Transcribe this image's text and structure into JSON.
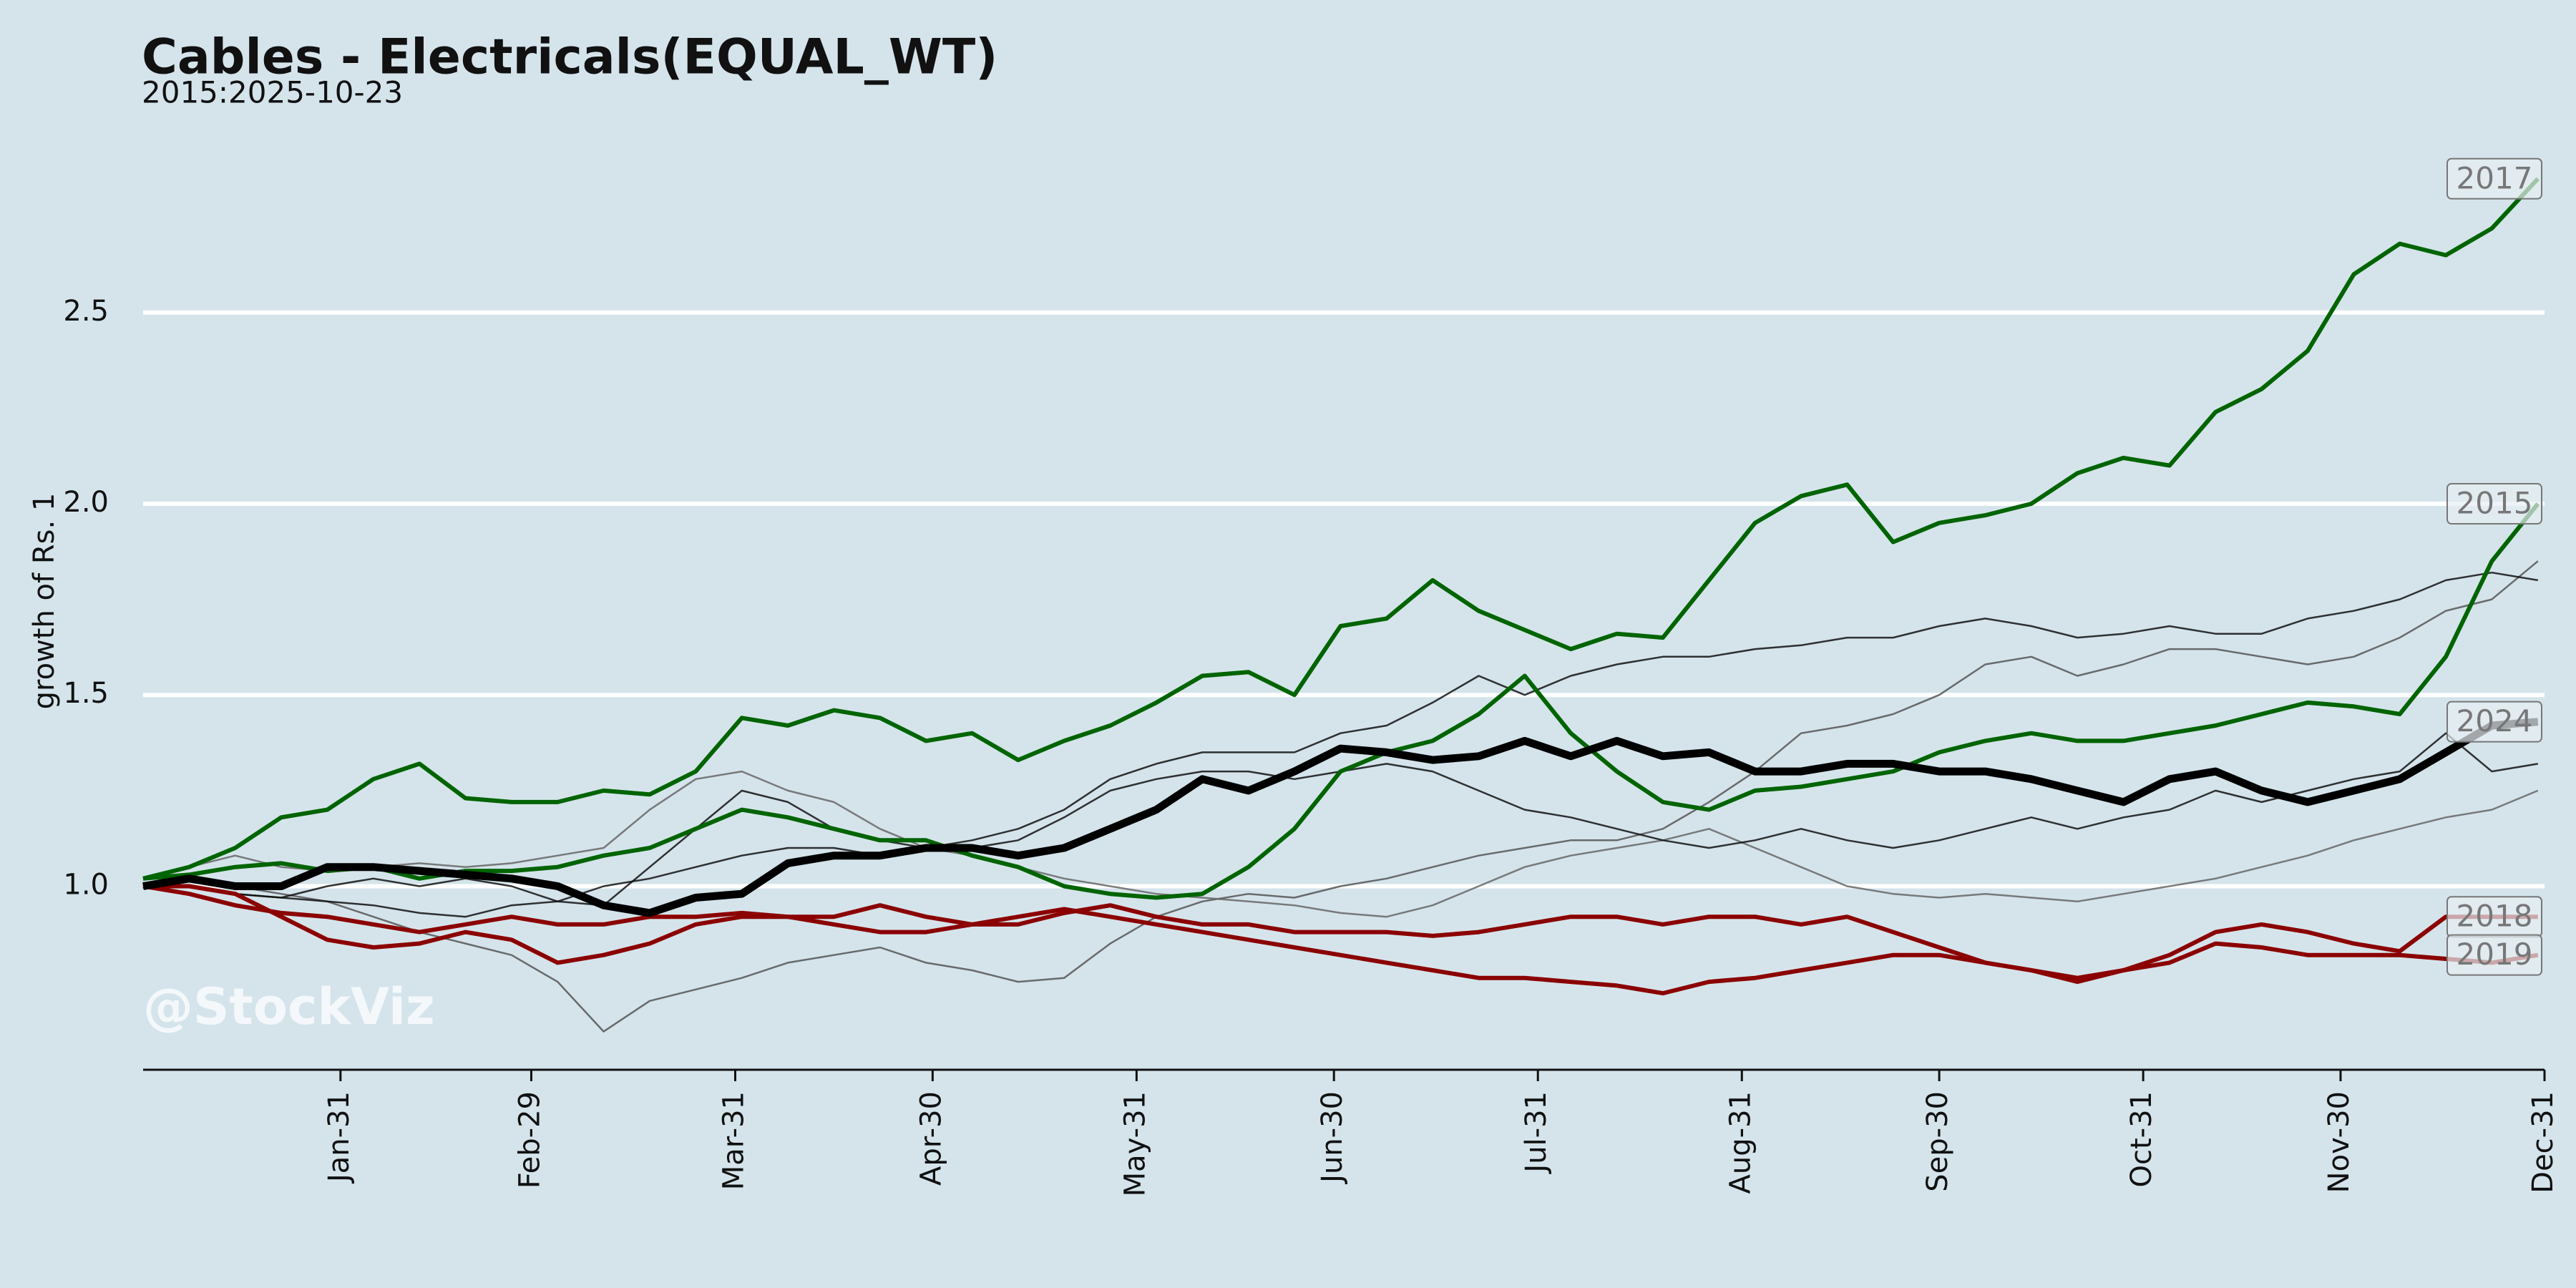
{
  "chart_data": {
    "type": "line",
    "title": "Cables - Electricals(EQUAL_WT)",
    "subtitle": "2015:2025-10-23",
    "y_label": "growth of Rs. 1",
    "watermark": "@StockViz",
    "grid": true,
    "xlim": [
      1,
      366
    ],
    "ylim": [
      0.52,
      2.93
    ],
    "yticks": [
      {
        "value": 1,
        "label": "1.0"
      },
      1.5,
      {
        "value": 2,
        "label": "2.0"
      },
      2.5
    ],
    "xticks": [
      {
        "value": 31,
        "label": "Jan-31"
      },
      {
        "value": 60,
        "label": "Feb-29"
      },
      {
        "value": 91,
        "label": "Mar-31"
      },
      {
        "value": 121,
        "label": "Apr-30"
      },
      {
        "value": 152,
        "label": "May-31"
      },
      {
        "value": 182,
        "label": "Jun-30"
      },
      {
        "value": 213,
        "label": "Jul-31"
      },
      {
        "value": 244,
        "label": "Aug-31"
      },
      {
        "value": 274,
        "label": "Sep-30"
      },
      {
        "value": 305,
        "label": "Oct-31"
      },
      {
        "value": 335,
        "label": "Nov-30"
      },
      {
        "value": 366,
        "label": "Dec-31"
      }
    ],
    "x": [
      1,
      8,
      15,
      22,
      29,
      36,
      43,
      50,
      57,
      64,
      71,
      78,
      85,
      92,
      99,
      106,
      113,
      120,
      127,
      134,
      141,
      148,
      155,
      162,
      169,
      176,
      183,
      190,
      197,
      204,
      211,
      218,
      225,
      232,
      239,
      246,
      253,
      260,
      267,
      274,
      281,
      288,
      295,
      302,
      309,
      316,
      323,
      330,
      337,
      344,
      351,
      358,
      365
    ],
    "series": [
      {
        "color": "#555555",
        "values": [
          1.0,
          1.02,
          1.0,
          0.98,
          0.96,
          0.92,
          0.88,
          0.85,
          0.82,
          0.75,
          0.62,
          0.7,
          0.73,
          0.76,
          0.8,
          0.82,
          0.84,
          0.8,
          0.78,
          0.75,
          0.76,
          0.85,
          0.92,
          0.96,
          0.98,
          0.97,
          1.0,
          1.02,
          1.05,
          1.08,
          1.1,
          1.12,
          1.12,
          1.15,
          1.22,
          1.3,
          1.4,
          1.42,
          1.45,
          1.5,
          1.58,
          1.6,
          1.55,
          1.58,
          1.62,
          1.62,
          1.6,
          1.58,
          1.6,
          1.65,
          1.72,
          1.75,
          1.85
        ]
      },
      {
        "color": "#666666",
        "values": [
          1.02,
          1.05,
          1.08,
          1.05,
          1.04,
          1.05,
          1.06,
          1.05,
          1.06,
          1.08,
          1.1,
          1.2,
          1.28,
          1.3,
          1.25,
          1.22,
          1.15,
          1.1,
          1.08,
          1.05,
          1.02,
          1.0,
          0.98,
          0.97,
          0.96,
          0.95,
          0.93,
          0.92,
          0.95,
          1.0,
          1.05,
          1.08,
          1.1,
          1.12,
          1.15,
          1.1,
          1.05,
          1.0,
          0.98,
          0.97,
          0.98,
          0.97,
          0.96,
          0.98,
          1.0,
          1.02,
          1.05,
          1.08,
          1.12,
          1.15,
          1.18,
          1.2,
          1.25
        ]
      },
      {
        "color": "#111111",
        "values": [
          1.0,
          1.0,
          0.98,
          0.97,
          0.96,
          0.95,
          0.93,
          0.92,
          0.95,
          0.96,
          1.0,
          1.02,
          1.05,
          1.08,
          1.1,
          1.1,
          1.08,
          1.1,
          1.12,
          1.15,
          1.2,
          1.28,
          1.32,
          1.35,
          1.35,
          1.35,
          1.4,
          1.42,
          1.48,
          1.55,
          1.5,
          1.55,
          1.58,
          1.6,
          1.6,
          1.62,
          1.63,
          1.65,
          1.65,
          1.68,
          1.7,
          1.68,
          1.65,
          1.66,
          1.68,
          1.66,
          1.66,
          1.7,
          1.72,
          1.75,
          1.8,
          1.82,
          1.8
        ]
      },
      {
        "color": "#111111",
        "values": [
          1.0,
          1.0,
          0.98,
          0.97,
          1.0,
          1.02,
          1.0,
          1.02,
          1.0,
          0.96,
          0.95,
          1.05,
          1.15,
          1.25,
          1.22,
          1.15,
          1.12,
          1.1,
          1.1,
          1.12,
          1.18,
          1.25,
          1.28,
          1.3,
          1.3,
          1.28,
          1.3,
          1.32,
          1.3,
          1.25,
          1.2,
          1.18,
          1.15,
          1.12,
          1.1,
          1.12,
          1.15,
          1.12,
          1.1,
          1.12,
          1.15,
          1.18,
          1.15,
          1.18,
          1.2,
          1.25,
          1.22,
          1.25,
          1.28,
          1.3,
          1.4,
          1.3,
          1.32
        ]
      },
      {
        "name": "2018",
        "color": "#8b0000",
        "values": [
          1.0,
          0.98,
          0.95,
          0.93,
          0.92,
          0.9,
          0.88,
          0.9,
          0.92,
          0.9,
          0.9,
          0.92,
          0.92,
          0.93,
          0.92,
          0.92,
          0.95,
          0.92,
          0.9,
          0.9,
          0.93,
          0.95,
          0.92,
          0.9,
          0.9,
          0.88,
          0.88,
          0.88,
          0.87,
          0.88,
          0.9,
          0.92,
          0.92,
          0.9,
          0.92,
          0.92,
          0.9,
          0.92,
          0.88,
          0.84,
          0.8,
          0.78,
          0.75,
          0.78,
          0.82,
          0.88,
          0.9,
          0.88,
          0.85,
          0.83,
          0.92,
          0.92,
          0.92
        ]
      },
      {
        "name": "2019",
        "color": "#8b0000",
        "values": [
          1.0,
          1.0,
          0.98,
          0.92,
          0.86,
          0.84,
          0.85,
          0.88,
          0.86,
          0.8,
          0.82,
          0.85,
          0.9,
          0.92,
          0.92,
          0.9,
          0.88,
          0.88,
          0.9,
          0.92,
          0.94,
          0.92,
          0.9,
          0.88,
          0.86,
          0.84,
          0.82,
          0.8,
          0.78,
          0.76,
          0.76,
          0.75,
          0.74,
          0.72,
          0.75,
          0.76,
          0.78,
          0.8,
          0.82,
          0.82,
          0.8,
          0.78,
          0.76,
          0.78,
          0.8,
          0.85,
          0.84,
          0.82,
          0.82,
          0.82,
          0.81,
          0.8,
          0.82
        ]
      },
      {
        "name": "2015",
        "color": "#006400",
        "values": [
          1.02,
          1.03,
          1.05,
          1.06,
          1.04,
          1.05,
          1.02,
          1.04,
          1.04,
          1.05,
          1.08,
          1.1,
          1.15,
          1.2,
          1.18,
          1.15,
          1.12,
          1.12,
          1.08,
          1.05,
          1.0,
          0.98,
          0.97,
          0.98,
          1.05,
          1.15,
          1.3,
          1.35,
          1.38,
          1.45,
          1.55,
          1.4,
          1.3,
          1.22,
          1.2,
          1.25,
          1.26,
          1.28,
          1.3,
          1.35,
          1.38,
          1.4,
          1.38,
          1.38,
          1.4,
          1.42,
          1.45,
          1.48,
          1.47,
          1.45,
          1.6,
          1.85,
          2.0
        ]
      },
      {
        "name": "2017",
        "color": "#006400",
        "values": [
          1.02,
          1.05,
          1.1,
          1.18,
          1.2,
          1.28,
          1.32,
          1.23,
          1.22,
          1.22,
          1.25,
          1.24,
          1.3,
          1.44,
          1.42,
          1.46,
          1.44,
          1.38,
          1.4,
          1.33,
          1.38,
          1.42,
          1.48,
          1.55,
          1.56,
          1.5,
          1.68,
          1.7,
          1.8,
          1.72,
          1.67,
          1.62,
          1.66,
          1.65,
          1.8,
          1.95,
          2.02,
          2.05,
          1.9,
          1.95,
          1.97,
          2.0,
          2.08,
          2.12,
          2.1,
          2.24,
          2.3,
          2.4,
          2.6,
          2.68,
          2.65,
          2.72,
          2.85
        ]
      },
      {
        "name": "2024",
        "color": "#000000",
        "values": [
          1.0,
          1.02,
          1.0,
          1.0,
          1.05,
          1.05,
          1.04,
          1.03,
          1.02,
          1.0,
          0.95,
          0.93,
          0.97,
          0.98,
          1.06,
          1.08,
          1.08,
          1.1,
          1.1,
          1.08,
          1.1,
          1.15,
          1.2,
          1.28,
          1.25,
          1.3,
          1.36,
          1.35,
          1.33,
          1.34,
          1.38,
          1.34,
          1.38,
          1.34,
          1.35,
          1.3,
          1.3,
          1.32,
          1.32,
          1.3,
          1.3,
          1.28,
          1.25,
          1.22,
          1.28,
          1.3,
          1.25,
          1.22,
          1.25,
          1.28,
          1.35,
          1.42,
          1.43
        ]
      }
    ]
  }
}
